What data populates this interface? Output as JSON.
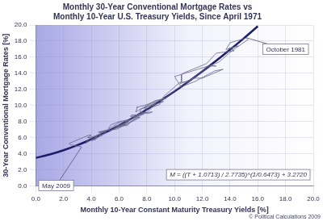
{
  "chart_data": {
    "type": "line",
    "title": [
      "Monthly 30-Year Conventional Mortgage Rates vs",
      "Monthly 10-Year U.S. Treasury Yields, Since April 1971"
    ],
    "x_label": "Monthly 10-Year Constant Maturity Treasury Yields [%]",
    "y_label": "30-Year Conventional Mortgage Rates [%]",
    "xlim": [
      0,
      20
    ],
    "ylim": [
      0,
      20
    ],
    "xticks": [
      {
        "value": 0,
        "label": "0.0"
      },
      {
        "value": 2,
        "label": "2.0"
      },
      {
        "value": 4,
        "label": "4.0"
      },
      {
        "value": 6,
        "label": "6.0"
      },
      {
        "value": 8,
        "label": "8.0"
      },
      {
        "value": 10,
        "label": "10.0"
      },
      {
        "value": 12,
        "label": "12.0"
      },
      {
        "value": 14,
        "label": "14.0"
      },
      {
        "value": 16,
        "label": "16.0"
      },
      {
        "value": 18,
        "label": "18.0"
      },
      {
        "value": 20,
        "label": "20.0"
      }
    ],
    "yticks": [
      {
        "value": 0,
        "label": "0.0"
      },
      {
        "value": 2,
        "label": "2.0"
      },
      {
        "value": 4,
        "label": "4.0"
      },
      {
        "value": 6,
        "label": "6.0"
      },
      {
        "value": 8,
        "label": "8.0"
      },
      {
        "value": 10,
        "label": "10.0"
      },
      {
        "value": 12,
        "label": "12.0"
      },
      {
        "value": 14,
        "label": "14.0"
      },
      {
        "value": 16,
        "label": "16.0"
      },
      {
        "value": 18,
        "label": "18.0"
      },
      {
        "value": 20,
        "label": "20.0"
      }
    ],
    "grid": true,
    "series": [
      {
        "type": "line",
        "color": "#6a6a8c",
        "x": [
          6.0,
          5.7,
          6.5,
          6.4,
          6.0,
          6.2,
          6.4,
          6.6,
          6.8,
          7.5,
          6.8,
          7.0,
          7.5,
          8.0,
          7.6,
          7.5,
          8.1,
          8.4,
          7.8,
          7.7,
          7.8,
          7.2,
          6.9,
          7.4,
          7.3,
          7.6,
          8.0,
          8.4,
          8.9,
          9.0,
          9.2,
          10.4,
          10.4,
          11.0,
          12.8,
          10.0,
          10.5,
          11.5,
          12.5,
          13.0,
          12.6,
          13.2,
          14.0,
          14.3,
          15.3,
          15.2,
          14.0,
          13.7,
          14.6,
          13.9,
          14.3,
          13.0,
          12.3,
          10.6,
          10.5,
          10.5,
          10.4,
          11.4,
          11.8,
          12.0,
          13.5,
          12.9,
          11.7,
          11.5,
          10.3,
          9.3,
          7.8,
          7.3,
          7.3,
          7.2,
          8.6,
          9.4,
          8.9,
          8.4,
          9.2,
          8.9,
          9.3,
          8.0,
          7.8,
          8.6,
          8.5,
          8.1,
          8.0,
          7.9,
          7.1,
          7.0,
          7.3,
          6.4,
          6.8,
          6.0,
          5.4,
          5.8,
          6.5,
          7.3,
          7.9,
          7.5,
          6.5,
          5.7,
          5.6,
          6.9,
          6.3,
          6.7,
          6.2,
          5.9,
          5.6,
          4.5,
          4.6,
          5.2,
          5.9,
          6.3,
          6.6,
          6.0,
          5.4,
          5.2,
          5.0,
          4.6,
          5.0,
          4.3,
          3.9,
          3.6,
          4.4,
          4.3,
          4.0,
          4.7,
          4.2,
          4.3,
          4.2,
          4.5,
          4.8,
          5.1,
          4.6,
          4.8,
          4.6,
          4.1,
          3.7,
          4.0,
          3.8,
          2.4,
          2.5,
          2.9,
          3.3
        ],
        "values": [
          7.6,
          7.4,
          7.7,
          7.6,
          7.4,
          7.4,
          7.5,
          7.5,
          7.9,
          8.5,
          8.7,
          8.5,
          9.0,
          9.7,
          9.6,
          9.2,
          9.0,
          9.2,
          9.1,
          9.0,
          8.9,
          8.8,
          8.8,
          8.8,
          8.8,
          9.0,
          9.1,
          9.8,
          10.1,
          10.4,
          11.1,
          12.9,
          12.9,
          12.9,
          15.1,
          13.6,
          12.2,
          13.7,
          14.9,
          14.9,
          15.0,
          15.4,
          16.6,
          17.0,
          18.2,
          18.4,
          17.8,
          16.95,
          17.4,
          17.1,
          16.8,
          16.5,
          15.2,
          14.0,
          13.8,
          13.0,
          12.7,
          13.4,
          13.4,
          13.4,
          14.5,
          14.3,
          13.2,
          13.0,
          12.2,
          10.9,
          10.0,
          9.8,
          9.7,
          9.2,
          10.6,
          10.9,
          10.6,
          10.0,
          10.5,
          10.3,
          10.9,
          9.9,
          9.7,
          10.2,
          10.0,
          9.7,
          9.5,
          9.2,
          8.5,
          8.4,
          8.6,
          8.0,
          8.2,
          7.5,
          6.9,
          7.2,
          7.6,
          8.4,
          9.2,
          8.8,
          7.6,
          7.2,
          7.0,
          8.3,
          7.6,
          8.0,
          7.4,
          7.1,
          7.0,
          6.7,
          6.7,
          7.0,
          7.8,
          8.0,
          8.2,
          8.0,
          7.6,
          7.0,
          6.8,
          6.6,
          6.9,
          6.2,
          6.0,
          5.3,
          6.2,
          5.9,
          5.6,
          6.3,
          5.7,
          5.8,
          5.8,
          6.3,
          6.4,
          6.7,
          6.2,
          6.3,
          6.4,
          6.1,
          6.0,
          6.3,
          6.3,
          5.3,
          5.1,
          5.0,
          4.86
        ]
      },
      {
        "type": "line",
        "color": "#1c1c6a",
        "x": [
          0,
          1,
          2,
          3,
          4,
          5,
          6,
          7,
          8,
          9,
          10,
          11,
          12,
          13,
          14,
          15,
          16
        ],
        "values": [
          3.5,
          3.91,
          4.44,
          5.08,
          5.82,
          6.63,
          7.52,
          8.48,
          9.51,
          10.61,
          11.76,
          12.97,
          14.24,
          15.56,
          16.94,
          18.36,
          19.85
        ]
      }
    ],
    "annotations": [
      {
        "text": "October 1981",
        "x": 15.2,
        "y": 18.4
      },
      {
        "text": "May 2009",
        "x": 3.3,
        "y": 4.86
      }
    ],
    "equation": "M = ((T + 1.0713) / 2.7735)^(1/0.6473) + 3.2720",
    "credit": "© Political Calculations 2009"
  }
}
